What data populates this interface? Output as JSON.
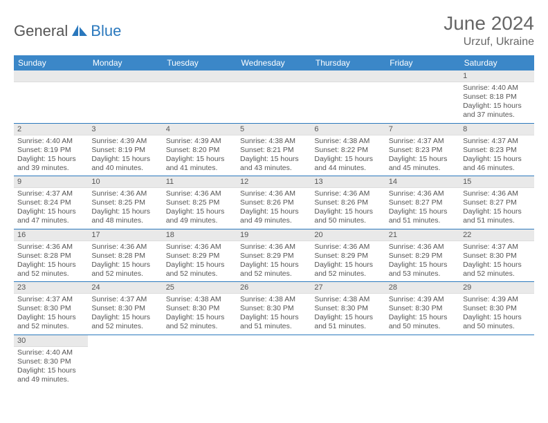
{
  "brand": {
    "part1": "General",
    "part2": "Blue"
  },
  "title": "June 2024",
  "location": "Urzuf, Ukraine",
  "colors": {
    "header_bg": "#3b87c8",
    "header_text": "#ffffff",
    "daynum_bg": "#e9e9e9",
    "border": "#2a78bd",
    "text": "#555555",
    "brand_blue": "#2a78bd"
  },
  "weekdays": [
    "Sunday",
    "Monday",
    "Tuesday",
    "Wednesday",
    "Thursday",
    "Friday",
    "Saturday"
  ],
  "weeks": [
    [
      {
        "n": "",
        "sr": "",
        "ss": "",
        "dl": ""
      },
      {
        "n": "",
        "sr": "",
        "ss": "",
        "dl": ""
      },
      {
        "n": "",
        "sr": "",
        "ss": "",
        "dl": ""
      },
      {
        "n": "",
        "sr": "",
        "ss": "",
        "dl": ""
      },
      {
        "n": "",
        "sr": "",
        "ss": "",
        "dl": ""
      },
      {
        "n": "",
        "sr": "",
        "ss": "",
        "dl": ""
      },
      {
        "n": "1",
        "sr": "Sunrise: 4:40 AM",
        "ss": "Sunset: 8:18 PM",
        "dl": "Daylight: 15 hours and 37 minutes."
      }
    ],
    [
      {
        "n": "2",
        "sr": "Sunrise: 4:40 AM",
        "ss": "Sunset: 8:19 PM",
        "dl": "Daylight: 15 hours and 39 minutes."
      },
      {
        "n": "3",
        "sr": "Sunrise: 4:39 AM",
        "ss": "Sunset: 8:19 PM",
        "dl": "Daylight: 15 hours and 40 minutes."
      },
      {
        "n": "4",
        "sr": "Sunrise: 4:39 AM",
        "ss": "Sunset: 8:20 PM",
        "dl": "Daylight: 15 hours and 41 minutes."
      },
      {
        "n": "5",
        "sr": "Sunrise: 4:38 AM",
        "ss": "Sunset: 8:21 PM",
        "dl": "Daylight: 15 hours and 43 minutes."
      },
      {
        "n": "6",
        "sr": "Sunrise: 4:38 AM",
        "ss": "Sunset: 8:22 PM",
        "dl": "Daylight: 15 hours and 44 minutes."
      },
      {
        "n": "7",
        "sr": "Sunrise: 4:37 AM",
        "ss": "Sunset: 8:23 PM",
        "dl": "Daylight: 15 hours and 45 minutes."
      },
      {
        "n": "8",
        "sr": "Sunrise: 4:37 AM",
        "ss": "Sunset: 8:23 PM",
        "dl": "Daylight: 15 hours and 46 minutes."
      }
    ],
    [
      {
        "n": "9",
        "sr": "Sunrise: 4:37 AM",
        "ss": "Sunset: 8:24 PM",
        "dl": "Daylight: 15 hours and 47 minutes."
      },
      {
        "n": "10",
        "sr": "Sunrise: 4:36 AM",
        "ss": "Sunset: 8:25 PM",
        "dl": "Daylight: 15 hours and 48 minutes."
      },
      {
        "n": "11",
        "sr": "Sunrise: 4:36 AM",
        "ss": "Sunset: 8:25 PM",
        "dl": "Daylight: 15 hours and 49 minutes."
      },
      {
        "n": "12",
        "sr": "Sunrise: 4:36 AM",
        "ss": "Sunset: 8:26 PM",
        "dl": "Daylight: 15 hours and 49 minutes."
      },
      {
        "n": "13",
        "sr": "Sunrise: 4:36 AM",
        "ss": "Sunset: 8:26 PM",
        "dl": "Daylight: 15 hours and 50 minutes."
      },
      {
        "n": "14",
        "sr": "Sunrise: 4:36 AM",
        "ss": "Sunset: 8:27 PM",
        "dl": "Daylight: 15 hours and 51 minutes."
      },
      {
        "n": "15",
        "sr": "Sunrise: 4:36 AM",
        "ss": "Sunset: 8:27 PM",
        "dl": "Daylight: 15 hours and 51 minutes."
      }
    ],
    [
      {
        "n": "16",
        "sr": "Sunrise: 4:36 AM",
        "ss": "Sunset: 8:28 PM",
        "dl": "Daylight: 15 hours and 52 minutes."
      },
      {
        "n": "17",
        "sr": "Sunrise: 4:36 AM",
        "ss": "Sunset: 8:28 PM",
        "dl": "Daylight: 15 hours and 52 minutes."
      },
      {
        "n": "18",
        "sr": "Sunrise: 4:36 AM",
        "ss": "Sunset: 8:29 PM",
        "dl": "Daylight: 15 hours and 52 minutes."
      },
      {
        "n": "19",
        "sr": "Sunrise: 4:36 AM",
        "ss": "Sunset: 8:29 PM",
        "dl": "Daylight: 15 hours and 52 minutes."
      },
      {
        "n": "20",
        "sr": "Sunrise: 4:36 AM",
        "ss": "Sunset: 8:29 PM",
        "dl": "Daylight: 15 hours and 52 minutes."
      },
      {
        "n": "21",
        "sr": "Sunrise: 4:36 AM",
        "ss": "Sunset: 8:29 PM",
        "dl": "Daylight: 15 hours and 53 minutes."
      },
      {
        "n": "22",
        "sr": "Sunrise: 4:37 AM",
        "ss": "Sunset: 8:30 PM",
        "dl": "Daylight: 15 hours and 52 minutes."
      }
    ],
    [
      {
        "n": "23",
        "sr": "Sunrise: 4:37 AM",
        "ss": "Sunset: 8:30 PM",
        "dl": "Daylight: 15 hours and 52 minutes."
      },
      {
        "n": "24",
        "sr": "Sunrise: 4:37 AM",
        "ss": "Sunset: 8:30 PM",
        "dl": "Daylight: 15 hours and 52 minutes."
      },
      {
        "n": "25",
        "sr": "Sunrise: 4:38 AM",
        "ss": "Sunset: 8:30 PM",
        "dl": "Daylight: 15 hours and 52 minutes."
      },
      {
        "n": "26",
        "sr": "Sunrise: 4:38 AM",
        "ss": "Sunset: 8:30 PM",
        "dl": "Daylight: 15 hours and 51 minutes."
      },
      {
        "n": "27",
        "sr": "Sunrise: 4:38 AM",
        "ss": "Sunset: 8:30 PM",
        "dl": "Daylight: 15 hours and 51 minutes."
      },
      {
        "n": "28",
        "sr": "Sunrise: 4:39 AM",
        "ss": "Sunset: 8:30 PM",
        "dl": "Daylight: 15 hours and 50 minutes."
      },
      {
        "n": "29",
        "sr": "Sunrise: 4:39 AM",
        "ss": "Sunset: 8:30 PM",
        "dl": "Daylight: 15 hours and 50 minutes."
      }
    ],
    [
      {
        "n": "30",
        "sr": "Sunrise: 4:40 AM",
        "ss": "Sunset: 8:30 PM",
        "dl": "Daylight: 15 hours and 49 minutes."
      },
      {
        "n": "",
        "sr": "",
        "ss": "",
        "dl": ""
      },
      {
        "n": "",
        "sr": "",
        "ss": "",
        "dl": ""
      },
      {
        "n": "",
        "sr": "",
        "ss": "",
        "dl": ""
      },
      {
        "n": "",
        "sr": "",
        "ss": "",
        "dl": ""
      },
      {
        "n": "",
        "sr": "",
        "ss": "",
        "dl": ""
      },
      {
        "n": "",
        "sr": "",
        "ss": "",
        "dl": ""
      }
    ]
  ]
}
